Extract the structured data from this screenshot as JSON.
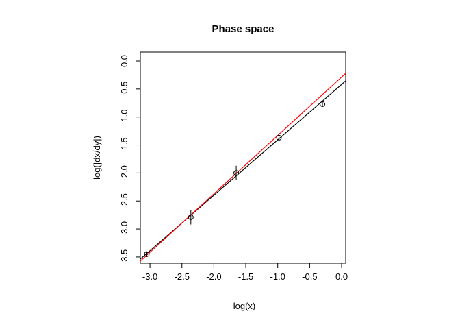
{
  "chart_data": {
    "type": "scatter",
    "title": "Phase space",
    "xlabel": "log(x)",
    "ylabel": "log(|dx/dy|)",
    "xlim": [
      -3.151,
      0.064
    ],
    "ylim": [
      -3.611,
      0.159
    ],
    "x_ticks": [
      -3.0,
      -2.5,
      -2.0,
      -1.5,
      -1.0,
      -0.5,
      0.0
    ],
    "x_tick_labels": [
      "-3.0",
      "-2.5",
      "-2.0",
      "-1.5",
      "-1.0",
      "-0.5",
      "0.0"
    ],
    "y_ticks": [
      0.0,
      -0.5,
      -1.0,
      -1.5,
      -2.0,
      -2.5,
      -3.0,
      -3.5
    ],
    "y_tick_labels": [
      "0.0",
      "-0.5",
      "-1.0",
      "-1.5",
      "-2.0",
      "-2.5",
      "-3.0",
      "-3.5"
    ],
    "grid": false,
    "marker": "open-circle",
    "points": [
      {
        "x": -3.05,
        "y": -3.45,
        "err": 0.05
      },
      {
        "x": -2.36,
        "y": -2.79,
        "err": 0.13
      },
      {
        "x": -1.65,
        "y": -2.0,
        "err": 0.13
      },
      {
        "x": -0.98,
        "y": -1.37,
        "err": 0.07
      },
      {
        "x": -0.3,
        "y": -0.77,
        "err": 0.05
      }
    ],
    "lines": [
      {
        "name": "fit-line",
        "color": "#000000",
        "x1": -3.151,
        "y1": -3.537,
        "x2": 0.064,
        "y2": -0.355
      },
      {
        "name": "reference-line",
        "color": "#ff0000",
        "x1": -3.151,
        "y1": -3.574,
        "x2": 0.064,
        "y2": -0.22
      }
    ],
    "colors": {
      "foreground": "#000000",
      "reference_line": "#ff0000",
      "background": "#ffffff"
    }
  }
}
